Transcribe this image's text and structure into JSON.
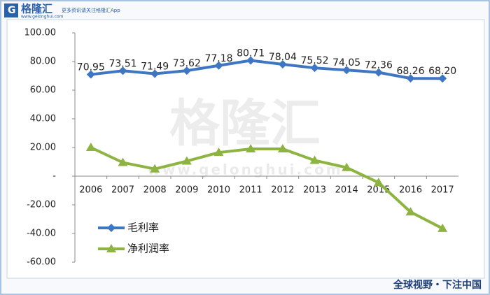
{
  "header": {
    "logo": "格隆汇",
    "logo_url": "www.gelonghui.com",
    "tagline": "更多资讯请关注格隆汇App"
  },
  "watermark": {
    "brand": "格隆汇",
    "url": "www.gelonghui.com"
  },
  "footer": {
    "slogan": "全球视野・下注中国"
  },
  "chart_data": {
    "type": "line",
    "categories": [
      "2006",
      "2007",
      "2008",
      "2009",
      "2010",
      "2011",
      "2012",
      "2013",
      "2014",
      "2015",
      "2016",
      "2017"
    ],
    "series": [
      {
        "name": "毛利率",
        "color": "#3e76c3",
        "marker": "diamond",
        "values": [
          70.95,
          73.51,
          71.49,
          73.62,
          77.18,
          80.71,
          78.04,
          75.52,
          74.05,
          72.36,
          68.26,
          68.2
        ],
        "value_labels": [
          "70.95",
          "73.51",
          "71.49",
          "73.62",
          "77.18",
          "80.71",
          "78.04",
          "75.52",
          "74.05",
          "72.36",
          "68.26",
          "68.20"
        ]
      },
      {
        "name": "净利润率",
        "color": "#8db441",
        "marker": "triangle",
        "values": [
          20,
          9.5,
          5,
          10.5,
          16.5,
          19,
          19,
          11,
          6,
          -4.5,
          -25,
          -36.5
        ]
      }
    ],
    "ylim": [
      -60,
      100
    ],
    "yticks": [
      {
        "value": -60,
        "label": "-60.00"
      },
      {
        "value": -40,
        "label": "-40.00"
      },
      {
        "value": -20,
        "label": "-20.00"
      },
      {
        "value": 0,
        "label": "-"
      },
      {
        "value": 20,
        "label": "20.00"
      },
      {
        "value": 40,
        "label": "40.00"
      },
      {
        "value": 60,
        "label": "60.00"
      },
      {
        "value": 80,
        "label": "80.00"
      },
      {
        "value": 100,
        "label": "100.00"
      }
    ],
    "grid": false,
    "legend": "lower-left"
  }
}
